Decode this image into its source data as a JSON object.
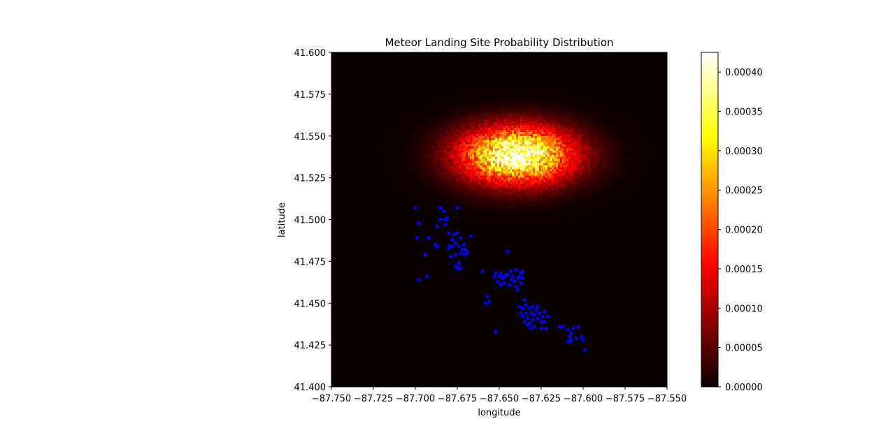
{
  "chart_data": {
    "type": "heatmap",
    "title": "Meteor Landing Site Probability Distribution",
    "xlabel": "longitude",
    "ylabel": "latitude",
    "xlim": [
      -87.75,
      -87.55
    ],
    "ylim": [
      41.4,
      41.6
    ],
    "x_ticks": [
      "−87.750",
      "−87.725",
      "−87.700",
      "−87.675",
      "−87.650",
      "−87.625",
      "−87.600",
      "−87.575",
      "−87.550"
    ],
    "y_ticks": [
      "41.400",
      "41.425",
      "41.450",
      "41.475",
      "41.500",
      "41.525",
      "41.550",
      "41.575",
      "41.600"
    ],
    "colorbar": {
      "colormap": "hot",
      "range": [
        0.0,
        0.000425
      ],
      "ticks": [
        "0.00000",
        "0.00005",
        "0.00010",
        "0.00015",
        "0.00020",
        "0.00025",
        "0.00030",
        "0.00035",
        "0.00040"
      ]
    },
    "heatmap": {
      "peak_center": [
        -87.6395,
        41.5385
      ],
      "peak_value": 0.000425,
      "background_value": 0.0
    },
    "scatter_color": "#0000ff",
    "points": [
      [
        -87.7,
        41.507
      ],
      [
        -87.698,
        41.498
      ],
      [
        -87.699,
        41.489
      ],
      [
        -87.694,
        41.479
      ],
      [
        -87.692,
        41.489
      ],
      [
        -87.698,
        41.464
      ],
      [
        -87.693,
        41.466
      ],
      [
        -87.688,
        41.485
      ],
      [
        -87.687,
        41.484
      ],
      [
        -87.687,
        41.496
      ],
      [
        -87.685,
        41.507
      ],
      [
        -87.685,
        41.5
      ],
      [
        -87.683,
        41.505
      ],
      [
        -87.682,
        41.497
      ],
      [
        -87.682,
        41.5
      ],
      [
        -87.681,
        41.501
      ],
      [
        -87.68,
        41.492
      ],
      [
        -87.68,
        41.484
      ],
      [
        -87.68,
        41.483
      ],
      [
        -87.679,
        41.478
      ],
      [
        -87.678,
        41.488
      ],
      [
        -87.677,
        41.491
      ],
      [
        -87.676,
        41.486
      ],
      [
        -87.676,
        41.479
      ],
      [
        -87.675,
        41.507
      ],
      [
        -87.675,
        41.492
      ],
      [
        -87.674,
        41.484
      ],
      [
        -87.673,
        41.48
      ],
      [
        -87.673,
        41.489
      ],
      [
        -87.672,
        41.482
      ],
      [
        -87.671,
        41.485
      ],
      [
        -87.671,
        41.479
      ],
      [
        -87.67,
        41.482
      ],
      [
        -87.669,
        41.48
      ],
      [
        -87.676,
        41.472
      ],
      [
        -87.674,
        41.474
      ],
      [
        -87.673,
        41.471
      ],
      [
        -87.675,
        41.471
      ],
      [
        -87.667,
        41.49
      ],
      [
        -87.678,
        41.484
      ],
      [
        -87.66,
        41.469
      ],
      [
        -87.657,
        41.454
      ],
      [
        -87.656,
        41.451
      ],
      [
        -87.658,
        41.45
      ],
      [
        -87.653,
        41.466
      ],
      [
        -87.652,
        41.468
      ],
      [
        -87.651,
        41.463
      ],
      [
        -87.65,
        41.466
      ],
      [
        -87.649,
        41.468
      ],
      [
        -87.649,
        41.461
      ],
      [
        -87.648,
        41.465
      ],
      [
        -87.647,
        41.466
      ],
      [
        -87.647,
        41.462
      ],
      [
        -87.646,
        41.467
      ],
      [
        -87.645,
        41.481
      ],
      [
        -87.644,
        41.461
      ],
      [
        -87.643,
        41.464
      ],
      [
        -87.643,
        41.469
      ],
      [
        -87.642,
        41.466
      ],
      [
        -87.641,
        41.463
      ],
      [
        -87.64,
        41.47
      ],
      [
        -87.64,
        41.46
      ],
      [
        -87.639,
        41.465
      ],
      [
        -87.639,
        41.458
      ],
      [
        -87.638,
        41.466
      ],
      [
        -87.637,
        41.468
      ],
      [
        -87.637,
        41.462
      ],
      [
        -87.636,
        41.465
      ],
      [
        -87.636,
        41.469
      ],
      [
        -87.645,
        41.467
      ],
      [
        -87.652,
        41.433
      ],
      [
        -87.638,
        41.448
      ],
      [
        -87.637,
        41.444
      ],
      [
        -87.636,
        41.447
      ],
      [
        -87.636,
        41.442
      ],
      [
        -87.635,
        41.452
      ],
      [
        -87.635,
        41.439
      ],
      [
        -87.634,
        41.449
      ],
      [
        -87.634,
        41.444
      ],
      [
        -87.633,
        41.441
      ],
      [
        -87.632,
        41.447
      ],
      [
        -87.632,
        41.438
      ],
      [
        -87.631,
        41.444
      ],
      [
        -87.63,
        41.448
      ],
      [
        -87.63,
        41.44
      ],
      [
        -87.629,
        41.443
      ],
      [
        -87.629,
        41.436
      ],
      [
        -87.628,
        41.446
      ],
      [
        -87.627,
        41.441
      ],
      [
        -87.627,
        41.448
      ],
      [
        -87.626,
        41.444
      ],
      [
        -87.625,
        41.439
      ],
      [
        -87.625,
        41.435
      ],
      [
        -87.624,
        41.442
      ],
      [
        -87.623,
        41.445
      ],
      [
        -87.623,
        41.439
      ],
      [
        -87.622,
        41.435
      ],
      [
        -87.621,
        41.442
      ],
      [
        -87.633,
        41.437
      ],
      [
        -87.631,
        41.435
      ],
      [
        -87.614,
        41.436
      ],
      [
        -87.612,
        41.436
      ],
      [
        -87.609,
        41.434
      ],
      [
        -87.608,
        41.43
      ],
      [
        -87.608,
        41.427
      ],
      [
        -87.607,
        41.432
      ],
      [
        -87.606,
        41.435
      ],
      [
        -87.604,
        41.429
      ],
      [
        -87.603,
        41.436
      ],
      [
        -87.601,
        41.43
      ],
      [
        -87.6,
        41.428
      ],
      [
        -87.599,
        41.422
      ],
      [
        -87.607,
        41.428
      ],
      [
        -87.609,
        41.427
      ]
    ]
  }
}
